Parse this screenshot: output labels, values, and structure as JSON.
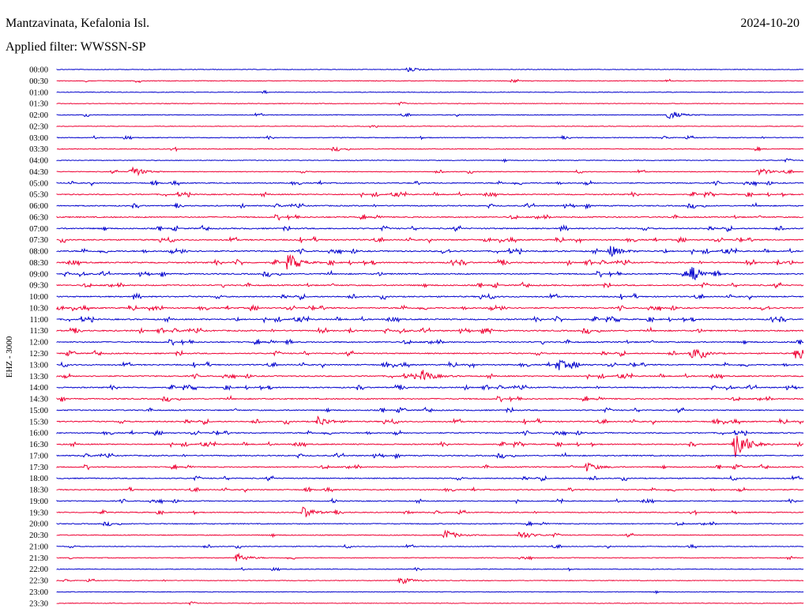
{
  "header": {
    "station": "Mantzavinata, Kefalonia Isl.",
    "date": "2024-10-20",
    "filter": "Applied filter: WWSSN-SP"
  },
  "channel_label": "EHZ - 3000",
  "colors": {
    "even_trace": "#0000cc",
    "odd_trace": "#ee0033",
    "background": "#ffffff"
  },
  "chart_data": {
    "type": "line",
    "title": "Mantzavinata, Kefalonia Isl.",
    "subtitle": "Applied filter: WWSSN-SP",
    "ylabel": "EHZ - 3000",
    "xlabel": "",
    "grid": false,
    "legend": "none",
    "row_labels": [
      "00:00",
      "00:30",
      "01:00",
      "01:30",
      "02:00",
      "02:30",
      "03:00",
      "03:30",
      "04:00",
      "04:30",
      "05:00",
      "05:30",
      "06:00",
      "06:30",
      "07:00",
      "07:30",
      "08:00",
      "08:30",
      "09:00",
      "09:30",
      "10:00",
      "10:30",
      "11:00",
      "11:30",
      "12:00",
      "12:30",
      "13:00",
      "13:30",
      "14:00",
      "14:30",
      "15:00",
      "15:30",
      "16:00",
      "16:30",
      "17:00",
      "17:30",
      "18:00",
      "18:30",
      "19:00",
      "19:30",
      "20:00",
      "20:30",
      "21:00",
      "21:30",
      "22:00",
      "22:30",
      "23:00",
      "23:30"
    ],
    "activity": [
      0.05,
      0.06,
      0.04,
      0.04,
      0.08,
      0.06,
      0.15,
      0.2,
      0.12,
      0.12,
      0.4,
      0.45,
      0.45,
      0.5,
      0.55,
      0.55,
      0.6,
      0.65,
      0.55,
      0.55,
      0.55,
      0.6,
      0.6,
      0.6,
      0.55,
      0.5,
      0.5,
      0.5,
      0.5,
      0.5,
      0.45,
      0.5,
      0.45,
      0.45,
      0.45,
      0.4,
      0.4,
      0.35,
      0.3,
      0.3,
      0.25,
      0.2,
      0.15,
      0.12,
      0.06,
      0.06,
      0.05,
      0.04
    ],
    "events": [
      {
        "row": 0,
        "pos": 0.47,
        "amp": 3
      },
      {
        "row": 4,
        "pos": 0.82,
        "amp": 6
      },
      {
        "row": 9,
        "pos": 0.1,
        "amp": 8
      },
      {
        "row": 9,
        "pos": 0.94,
        "amp": 5
      },
      {
        "row": 16,
        "pos": 0.74,
        "amp": 8
      },
      {
        "row": 17,
        "pos": 0.31,
        "amp": 9
      },
      {
        "row": 18,
        "pos": 0.85,
        "amp": 10
      },
      {
        "row": 25,
        "pos": 0.85,
        "amp": 8
      },
      {
        "row": 25,
        "pos": 0.99,
        "amp": 7
      },
      {
        "row": 26,
        "pos": 0.67,
        "amp": 8
      },
      {
        "row": 27,
        "pos": 0.49,
        "amp": 8
      },
      {
        "row": 31,
        "pos": 0.35,
        "amp": 7
      },
      {
        "row": 33,
        "pos": 0.91,
        "amp": 24
      },
      {
        "row": 35,
        "pos": 0.71,
        "amp": 6
      },
      {
        "row": 39,
        "pos": 0.33,
        "amp": 8
      },
      {
        "row": 41,
        "pos": 0.52,
        "amp": 7
      },
      {
        "row": 41,
        "pos": 0.62,
        "amp": 6
      },
      {
        "row": 43,
        "pos": 0.24,
        "amp": 6
      },
      {
        "row": 45,
        "pos": 0.46,
        "amp": 5
      }
    ]
  }
}
